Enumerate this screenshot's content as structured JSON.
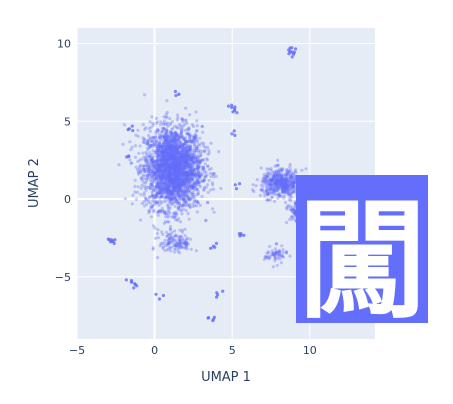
{
  "chart_data": {
    "type": "scatter",
    "title": "",
    "xlabel": "UMAP 1",
    "ylabel": "UMAP 2",
    "xlim": [
      -5,
      14.2
    ],
    "ylim": [
      -9,
      11
    ],
    "x_ticks": [
      -5,
      0,
      5,
      10
    ],
    "y_ticks": [
      -5,
      0,
      5,
      10
    ],
    "x_tick_labels": [
      "−5",
      "0",
      "5",
      "10"
    ],
    "y_tick_labels": [
      "−5",
      "0",
      "5",
      "10"
    ],
    "grid": true,
    "legend": "none",
    "marker_color": "#636efa",
    "plot_background": "#e5ecf6",
    "clusters": [
      {
        "cx": 1.2,
        "cy": 2.0,
        "sx": 1.55,
        "sy": 2.2,
        "n": 2600
      },
      {
        "cx": 8.2,
        "cy": 1.0,
        "sx": 1.1,
        "sy": 0.75,
        "n": 500
      },
      {
        "cx": 9.3,
        "cy": -0.8,
        "sx": 0.55,
        "sy": 0.6,
        "n": 150
      },
      {
        "cx": 1.4,
        "cy": -2.8,
        "sx": 0.9,
        "sy": 0.6,
        "n": 120
      },
      {
        "cx": 7.8,
        "cy": -3.6,
        "sx": 0.6,
        "sy": 0.45,
        "n": 60
      }
    ],
    "islands": [
      {
        "x": 8.8,
        "y": 9.5,
        "n": 12
      },
      {
        "x": 5.1,
        "y": 5.8,
        "n": 8
      },
      {
        "x": 1.4,
        "y": 6.8,
        "n": 3
      },
      {
        "x": -1.5,
        "y": 4.5,
        "n": 4
      },
      {
        "x": -1.7,
        "y": 2.7,
        "n": 3
      },
      {
        "x": -2.8,
        "y": -2.7,
        "n": 10
      },
      {
        "x": -1.5,
        "y": -5.4,
        "n": 8
      },
      {
        "x": 3.6,
        "y": -7.8,
        "n": 5
      },
      {
        "x": 5.5,
        "y": -2.3,
        "n": 5
      },
      {
        "x": 4.2,
        "y": -6.2,
        "n": 4
      },
      {
        "x": 0.3,
        "y": -6.3,
        "n": 3
      },
      {
        "x": 4.9,
        "y": 4.1,
        "n": 3
      },
      {
        "x": 5.3,
        "y": 0.9,
        "n": 3
      },
      {
        "x": 3.9,
        "y": -2.9,
        "n": 4
      }
    ]
  },
  "overlay": {
    "glyph": "闖",
    "background_color": "#636efa",
    "text_color": "#ffffff"
  }
}
